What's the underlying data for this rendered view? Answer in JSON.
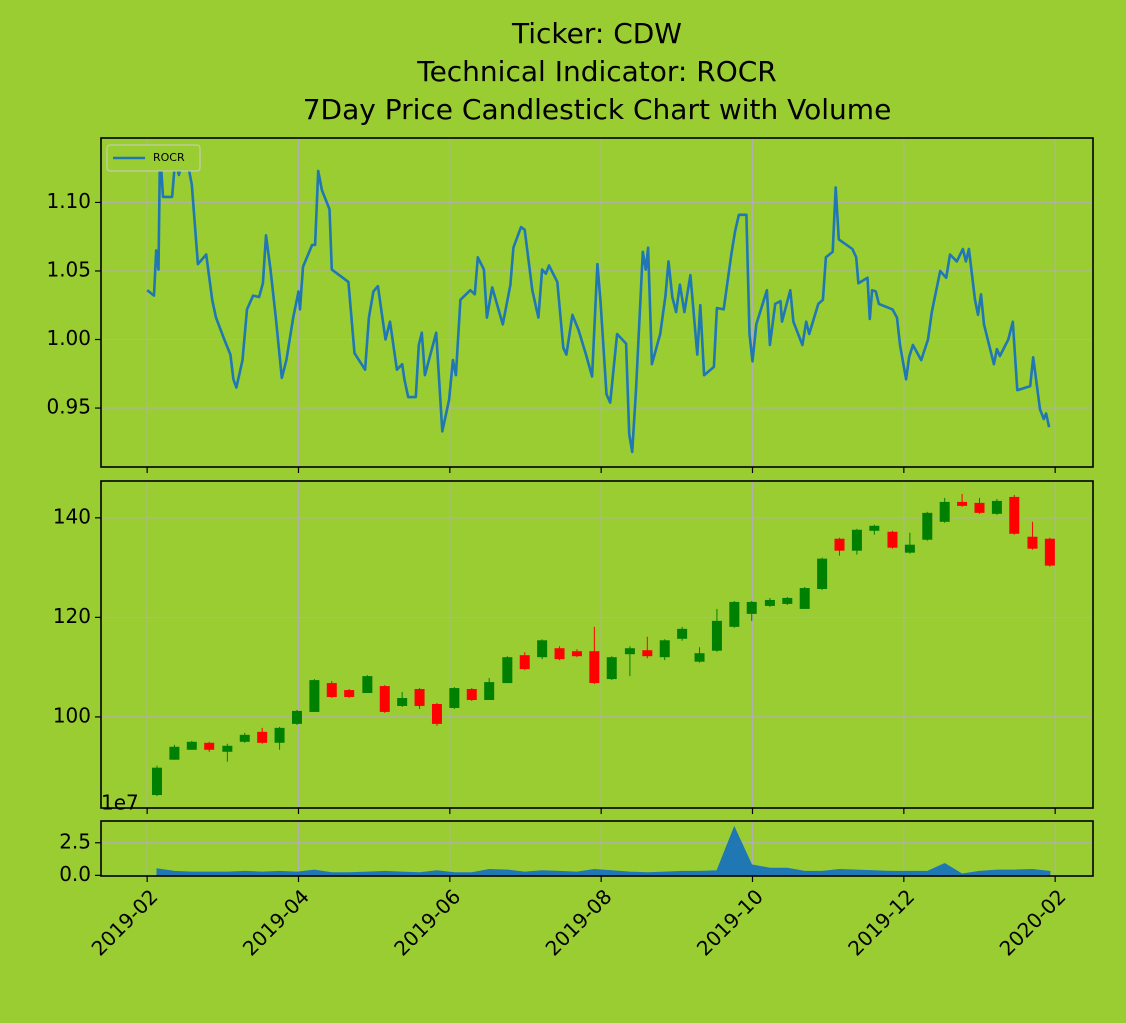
{
  "chart_data": [
    {
      "type": "line",
      "title": [
        "Ticker: CDW",
        "Technical Indicator: ROCR",
        "7Day Price Candlestick Chart with Volume"
      ],
      "x": [
        1.0,
        1.09,
        1.12,
        1.15,
        1.17,
        1.21,
        1.33,
        1.37,
        1.42,
        1.5,
        1.59,
        1.67,
        1.78,
        1.86,
        1.91,
        2.02,
        2.1,
        2.14,
        2.18,
        2.26,
        2.32,
        2.4,
        2.48,
        2.53,
        2.57,
        2.63,
        2.7,
        2.78,
        2.84,
        2.93,
        3.0,
        3.02,
        3.06,
        3.18,
        3.22,
        3.26,
        3.31,
        3.41,
        3.44,
        3.66,
        3.74,
        3.88,
        3.93,
        3.99,
        4.05,
        4.15,
        4.21,
        4.3,
        4.37,
        4.4,
        4.45,
        4.55,
        4.59,
        4.63,
        4.67,
        4.82,
        4.9,
        4.99,
        5.04,
        5.08,
        5.14,
        5.27,
        5.33,
        5.37,
        5.45,
        5.49,
        5.56,
        5.7,
        5.8,
        5.84,
        5.94,
        5.99,
        6.09,
        6.17,
        6.22,
        6.27,
        6.31,
        6.42,
        6.5,
        6.54,
        6.62,
        6.7,
        6.8,
        6.88,
        6.95,
        6.99,
        7.07,
        7.12,
        7.21,
        7.33,
        7.37,
        7.41,
        7.46,
        7.55,
        7.59,
        7.62,
        7.67,
        7.78,
        7.85,
        7.89,
        7.94,
        7.99,
        8.04,
        8.1,
        8.18,
        8.27,
        8.31,
        8.36,
        8.49,
        8.53,
        8.62,
        8.72,
        8.77,
        8.82,
        8.92,
        8.96,
        9.0,
        9.05,
        9.19,
        9.23,
        9.3,
        9.37,
        9.39,
        9.5,
        9.54,
        9.66,
        9.71,
        9.75,
        9.87,
        9.93,
        9.97,
        10.06,
        10.1,
        10.14,
        10.32,
        10.37,
        10.4,
        10.52,
        10.55,
        10.58,
        10.63,
        10.67,
        10.85,
        10.91,
        10.95,
        11.03,
        11.07,
        11.12,
        11.23,
        11.32,
        11.37,
        11.48,
        11.56,
        11.61,
        11.7,
        11.78,
        11.82,
        11.86,
        11.94,
        11.98,
        12.02,
        12.06,
        12.19,
        12.23,
        12.27,
        12.38,
        12.44,
        12.5,
        12.67,
        12.71,
        12.8,
        12.85,
        12.88,
        12.92
      ],
      "series": [
        {
          "name": "ROCR",
          "color": "#1f77b4",
          "values": [
            1.036,
            1.032,
            1.065,
            1.051,
            1.139,
            1.104,
            1.104,
            1.131,
            1.12,
            1.139,
            1.113,
            1.055,
            1.062,
            1.029,
            1.016,
            1.0,
            0.989,
            0.971,
            0.965,
            0.985,
            1.022,
            1.032,
            1.031,
            1.041,
            1.076,
            1.051,
            1.016,
            0.972,
            0.985,
            1.016,
            1.035,
            1.022,
            1.053,
            1.069,
            1.069,
            1.123,
            1.109,
            1.095,
            1.051,
            1.042,
            0.99,
            0.978,
            1.016,
            1.035,
            1.039,
            1.0,
            1.013,
            0.978,
            0.982,
            0.971,
            0.958,
            0.958,
            0.996,
            1.005,
            0.974,
            1.005,
            0.933,
            0.956,
            0.985,
            0.974,
            1.029,
            1.036,
            1.033,
            1.06,
            1.051,
            1.016,
            1.038,
            1.011,
            1.04,
            1.067,
            1.082,
            1.08,
            1.036,
            1.016,
            1.051,
            1.048,
            1.054,
            1.042,
            0.994,
            0.989,
            1.018,
            1.007,
            0.989,
            0.973,
            1.055,
            1.029,
            0.96,
            0.954,
            1.004,
            0.997,
            0.931,
            0.918,
            0.963,
            1.064,
            1.051,
            1.067,
            0.982,
            1.004,
            1.032,
            1.057,
            1.031,
            1.02,
            1.04,
            1.02,
            1.047,
            0.989,
            1.025,
            0.974,
            0.98,
            1.023,
            1.022,
            1.062,
            1.079,
            1.091,
            1.091,
            1.004,
            0.984,
            1.011,
            1.036,
            0.996,
            1.026,
            1.028,
            1.013,
            1.036,
            1.013,
            0.996,
            1.013,
            1.004,
            1.026,
            1.029,
            1.06,
            1.064,
            1.111,
            1.073,
            1.066,
            1.06,
            1.041,
            1.045,
            1.015,
            1.036,
            1.035,
            1.026,
            1.022,
            1.016,
            0.996,
            0.971,
            0.987,
            0.996,
            0.985,
            1.0,
            1.02,
            1.05,
            1.045,
            1.062,
            1.057,
            1.066,
            1.057,
            1.066,
            1.029,
            1.018,
            1.033,
            1.011,
            0.982,
            0.993,
            0.988,
            1.0,
            1.013,
            0.963,
            0.966,
            0.987,
            0.949,
            0.942,
            0.946,
            0.936
          ]
        }
      ],
      "xlim": [
        0.39,
        13.5
      ],
      "xticks": [
        1,
        3,
        5,
        7,
        9,
        11,
        13
      ],
      "ylim": [
        0.907,
        1.147
      ],
      "yticks": [
        {
          "value": 1.1,
          "label": "1.10"
        },
        {
          "value": 1.05,
          "label": "1.05"
        },
        {
          "value": 1.0,
          "label": "1.00"
        },
        {
          "value": 0.95,
          "label": "0.95"
        }
      ],
      "grid": true,
      "legend": "upper left"
    },
    {
      "type": "candlestick",
      "x": [
        1.13,
        1.36,
        1.59,
        1.82,
        2.06,
        2.29,
        2.52,
        2.75,
        2.98,
        3.21,
        3.44,
        3.67,
        3.91,
        4.14,
        4.37,
        4.6,
        4.83,
        5.06,
        5.29,
        5.52,
        5.76,
        5.99,
        6.22,
        6.45,
        6.68,
        6.91,
        7.14,
        7.38,
        7.61,
        7.84,
        8.07,
        8.3,
        8.53,
        8.76,
        8.99,
        9.23,
        9.46,
        9.69,
        9.92,
        10.15,
        10.38,
        10.61,
        10.85,
        11.08,
        11.31,
        11.54,
        11.77,
        12.0,
        12.23,
        12.46,
        12.7,
        12.93
      ],
      "open": [
        84.3,
        91.4,
        93.4,
        94.8,
        93.0,
        95.0,
        97.0,
        94.8,
        98.6,
        101.0,
        106.8,
        105.4,
        104.8,
        106.2,
        102.2,
        105.6,
        102.6,
        101.8,
        105.6,
        103.4,
        106.8,
        112.4,
        112.0,
        113.8,
        113.2,
        113.2,
        107.6,
        112.6,
        113.4,
        112.0,
        115.7,
        111.1,
        113.3,
        118.1,
        120.7,
        122.3,
        122.7,
        121.7,
        125.7,
        135.8,
        133.4,
        137.4,
        137.2,
        133.0,
        135.6,
        139.2,
        143.2,
        143.0,
        140.8,
        144.2,
        136.2,
        135.8
      ],
      "high": [
        90.2,
        94.4,
        95.2,
        95.0,
        94.6,
        96.8,
        97.8,
        98.0,
        101.4,
        107.6,
        107.2,
        105.6,
        108.4,
        106.4,
        105.0,
        105.8,
        102.8,
        106.0,
        105.8,
        107.8,
        112.2,
        113.0,
        115.6,
        114.2,
        113.6,
        118.1,
        112.2,
        114.2,
        116.1,
        115.6,
        118.1,
        114.0,
        121.7,
        123.3,
        123.3,
        123.9,
        124.1,
        126.1,
        132.0,
        136.0,
        137.8,
        138.6,
        137.4,
        137.0,
        141.2,
        144.0,
        144.8,
        144.0,
        143.8,
        144.6,
        139.2,
        136.0
      ],
      "low": [
        84.1,
        91.4,
        93.4,
        93.0,
        91.0,
        94.8,
        94.6,
        93.4,
        98.4,
        101.0,
        103.8,
        103.8,
        104.8,
        100.8,
        102.0,
        101.6,
        98.2,
        101.6,
        103.2,
        103.4,
        106.8,
        109.4,
        111.6,
        111.4,
        112.0,
        106.6,
        107.4,
        108.2,
        111.8,
        111.4,
        115.3,
        110.9,
        113.1,
        117.9,
        119.3,
        122.1,
        122.5,
        121.7,
        125.5,
        132.4,
        132.6,
        136.6,
        133.8,
        132.8,
        135.4,
        139.0,
        142.2,
        140.8,
        140.6,
        136.6,
        133.6,
        130.2
      ],
      "close": [
        89.8,
        94.0,
        95.0,
        93.4,
        94.2,
        96.4,
        94.8,
        97.8,
        101.2,
        107.4,
        104.0,
        104.0,
        108.2,
        101.0,
        103.8,
        102.2,
        98.6,
        105.8,
        103.4,
        107.0,
        112.0,
        109.6,
        115.4,
        111.6,
        112.2,
        106.8,
        112.0,
        113.8,
        112.2,
        115.4,
        117.7,
        112.8,
        119.3,
        123.1,
        123.1,
        123.5,
        123.9,
        125.9,
        131.8,
        133.4,
        137.6,
        138.4,
        134.0,
        134.6,
        141.0,
        143.2,
        142.4,
        141.0,
        143.4,
        136.8,
        133.8,
        130.4
      ],
      "up_color": "#008000",
      "down_color": "#ff0000",
      "xlim": [
        0.39,
        13.5
      ],
      "xticks": [
        1,
        3,
        5,
        7,
        9,
        11,
        13
      ],
      "ylim": [
        81.7,
        147.4
      ],
      "yticks": [
        100,
        120,
        140
      ],
      "grid": true
    },
    {
      "type": "area",
      "offset_label": "1e7",
      "x": [
        1.13,
        1.36,
        1.59,
        1.82,
        2.06,
        2.29,
        2.52,
        2.75,
        2.98,
        3.21,
        3.44,
        3.67,
        3.91,
        4.14,
        4.37,
        4.6,
        4.83,
        5.06,
        5.29,
        5.52,
        5.76,
        5.99,
        6.22,
        6.45,
        6.68,
        6.91,
        7.14,
        7.38,
        7.61,
        7.84,
        8.07,
        8.3,
        8.53,
        8.76,
        8.99,
        9.23,
        9.46,
        9.69,
        9.92,
        10.15,
        10.38,
        10.61,
        10.85,
        11.08,
        11.31,
        11.54,
        11.77,
        12.0,
        12.23,
        12.46,
        12.7,
        12.93
      ],
      "values": [
        0.5,
        0.3,
        0.25,
        0.25,
        0.25,
        0.3,
        0.25,
        0.3,
        0.25,
        0.4,
        0.2,
        0.2,
        0.25,
        0.3,
        0.25,
        0.2,
        0.35,
        0.2,
        0.2,
        0.45,
        0.4,
        0.25,
        0.35,
        0.3,
        0.25,
        0.45,
        0.35,
        0.25,
        0.2,
        0.25,
        0.3,
        0.3,
        0.35,
        3.7,
        0.8,
        0.55,
        0.55,
        0.3,
        0.3,
        0.45,
        0.4,
        0.35,
        0.3,
        0.3,
        0.3,
        0.9,
        0.1,
        0.3,
        0.4,
        0.4,
        0.45,
        0.3
      ],
      "color": "#1f77b4",
      "xlim": [
        0.39,
        13.5
      ],
      "xticks": [
        {
          "value": 1,
          "label": "2019-02"
        },
        {
          "value": 3,
          "label": "2019-04"
        },
        {
          "value": 5,
          "label": "2019-06"
        },
        {
          "value": 7,
          "label": "2019-08"
        },
        {
          "value": 9,
          "label": "2019-10"
        },
        {
          "value": 11,
          "label": "2019-12"
        },
        {
          "value": 13,
          "label": "2020-02"
        }
      ],
      "ylim": [
        -0.05,
        4.17
      ],
      "yticks": [
        {
          "value": 0.0,
          "label": "0.0"
        },
        {
          "value": 2.5,
          "label": "2.5"
        }
      ],
      "grid": true
    }
  ]
}
